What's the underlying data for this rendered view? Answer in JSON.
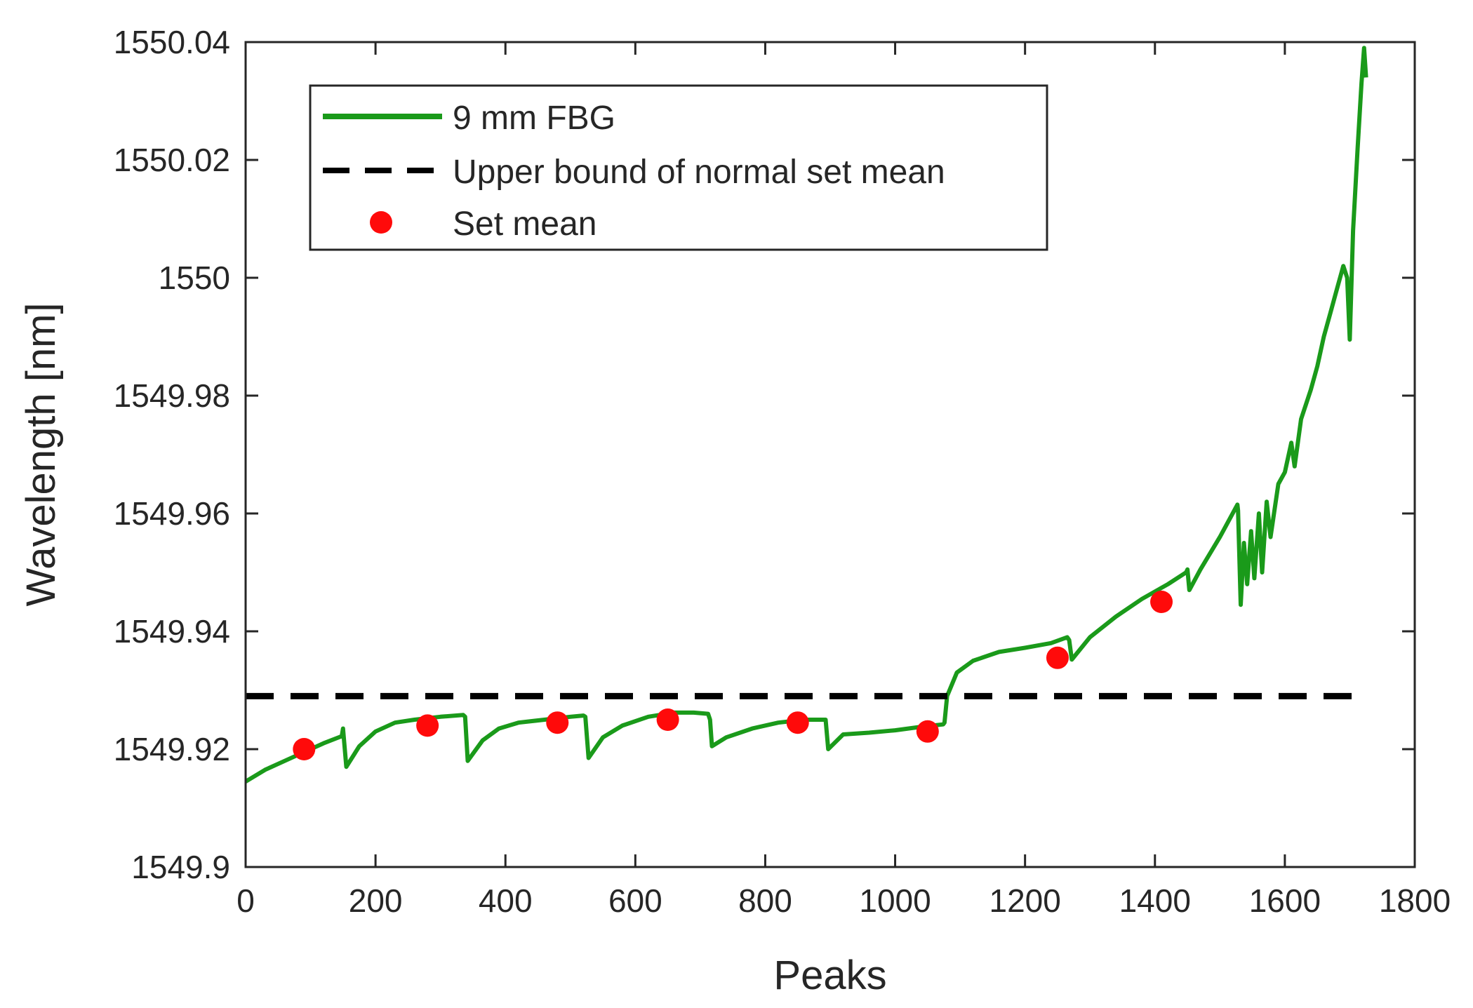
{
  "chart_data": {
    "type": "line",
    "title": "",
    "xlabel": "Peaks",
    "ylabel": "Wavelength [nm]",
    "xlim": [
      0,
      1800
    ],
    "ylim": [
      1549.9,
      1550.04
    ],
    "x_ticks": [
      0,
      200,
      400,
      600,
      800,
      1000,
      1200,
      1400,
      1600,
      1800
    ],
    "x_tick_labels": [
      "0",
      "200",
      "400",
      "600",
      "800",
      "1000",
      "1200",
      "1400",
      "1600",
      "1800"
    ],
    "y_ticks": [
      1549.9,
      1549.92,
      1549.94,
      1549.96,
      1549.98,
      1550.0,
      1550.02,
      1550.04
    ],
    "y_tick_labels": [
      "1549.9",
      "1549.92",
      "1549.94",
      "1549.96",
      "1549.98",
      "1550",
      "1550.02",
      "1550.04"
    ],
    "grid": false,
    "legend_position": "top-left",
    "series": [
      {
        "name": "9 mm FBG",
        "kind": "line",
        "color": "#1a9a1a",
        "points": [
          [
            0,
            1549.9145
          ],
          [
            30,
            1549.9165
          ],
          [
            60,
            1549.918
          ],
          [
            90,
            1549.9195
          ],
          [
            120,
            1549.921
          ],
          [
            148,
            1549.9222
          ],
          [
            150,
            1549.9235
          ],
          [
            155,
            1549.917
          ],
          [
            175,
            1549.9205
          ],
          [
            200,
            1549.923
          ],
          [
            230,
            1549.9245
          ],
          [
            260,
            1549.925
          ],
          [
            300,
            1549.9255
          ],
          [
            335,
            1549.9258
          ],
          [
            338,
            1549.9255
          ],
          [
            342,
            1549.918
          ],
          [
            365,
            1549.9215
          ],
          [
            390,
            1549.9235
          ],
          [
            420,
            1549.9245
          ],
          [
            460,
            1549.925
          ],
          [
            500,
            1549.9255
          ],
          [
            520,
            1549.9257
          ],
          [
            523,
            1549.9255
          ],
          [
            528,
            1549.9185
          ],
          [
            550,
            1549.922
          ],
          [
            580,
            1549.924
          ],
          [
            620,
            1549.9255
          ],
          [
            660,
            1549.9262
          ],
          [
            690,
            1549.9262
          ],
          [
            712,
            1549.926
          ],
          [
            715,
            1549.925
          ],
          [
            718,
            1549.9205
          ],
          [
            740,
            1549.922
          ],
          [
            780,
            1549.9235
          ],
          [
            820,
            1549.9245
          ],
          [
            860,
            1549.925
          ],
          [
            890,
            1549.925
          ],
          [
            893,
            1549.925
          ],
          [
            897,
            1549.92
          ],
          [
            920,
            1549.9225
          ],
          [
            960,
            1549.9228
          ],
          [
            1000,
            1549.9232
          ],
          [
            1040,
            1549.9238
          ],
          [
            1074,
            1549.9242
          ],
          [
            1076,
            1549.9245
          ],
          [
            1080,
            1549.929
          ],
          [
            1095,
            1549.933
          ],
          [
            1120,
            1549.935
          ],
          [
            1160,
            1549.9365
          ],
          [
            1200,
            1549.9372
          ],
          [
            1240,
            1549.938
          ],
          [
            1265,
            1549.939
          ],
          [
            1268,
            1549.9385
          ],
          [
            1272,
            1549.9352
          ],
          [
            1300,
            1549.939
          ],
          [
            1340,
            1549.9425
          ],
          [
            1380,
            1549.9455
          ],
          [
            1420,
            1549.948
          ],
          [
            1448,
            1549.95
          ],
          [
            1450,
            1549.9505
          ],
          [
            1453,
            1549.947
          ],
          [
            1470,
            1549.9505
          ],
          [
            1500,
            1549.956
          ],
          [
            1527,
            1549.9615
          ],
          [
            1528,
            1549.9605
          ],
          [
            1532,
            1549.9445
          ],
          [
            1537,
            1549.955
          ],
          [
            1542,
            1549.948
          ],
          [
            1548,
            1549.957
          ],
          [
            1553,
            1549.949
          ],
          [
            1560,
            1549.96
          ],
          [
            1565,
            1549.95
          ],
          [
            1572,
            1549.962
          ],
          [
            1578,
            1549.956
          ],
          [
            1590,
            1549.965
          ],
          [
            1600,
            1549.967
          ],
          [
            1610,
            1549.972
          ],
          [
            1615,
            1549.968
          ],
          [
            1625,
            1549.976
          ],
          [
            1640,
            1549.981
          ],
          [
            1650,
            1549.985
          ],
          [
            1660,
            1549.99
          ],
          [
            1670,
            1549.994
          ],
          [
            1680,
            1549.998
          ],
          [
            1690,
            1550.002
          ],
          [
            1696,
            1550.0
          ],
          [
            1700,
            1549.9895
          ],
          [
            1705,
            1550.008
          ],
          [
            1712,
            1550.022
          ],
          [
            1718,
            1550.033
          ],
          [
            1722,
            1550.039
          ],
          [
            1725,
            1550.034
          ]
        ]
      },
      {
        "name": "Upper bound of normal set mean",
        "kind": "dashed-line",
        "color": "#000000",
        "points": [
          [
            0,
            1549.929
          ],
          [
            1725,
            1549.929
          ]
        ]
      },
      {
        "name": "Set mean",
        "kind": "scatter",
        "color": "#ff0a0a",
        "points": [
          [
            90,
            1549.92
          ],
          [
            280,
            1549.924
          ],
          [
            480,
            1549.9245
          ],
          [
            650,
            1549.925
          ],
          [
            850,
            1549.9245
          ],
          [
            1050,
            1549.923
          ],
          [
            1250,
            1549.9355
          ],
          [
            1410,
            1549.945
          ]
        ]
      }
    ]
  }
}
